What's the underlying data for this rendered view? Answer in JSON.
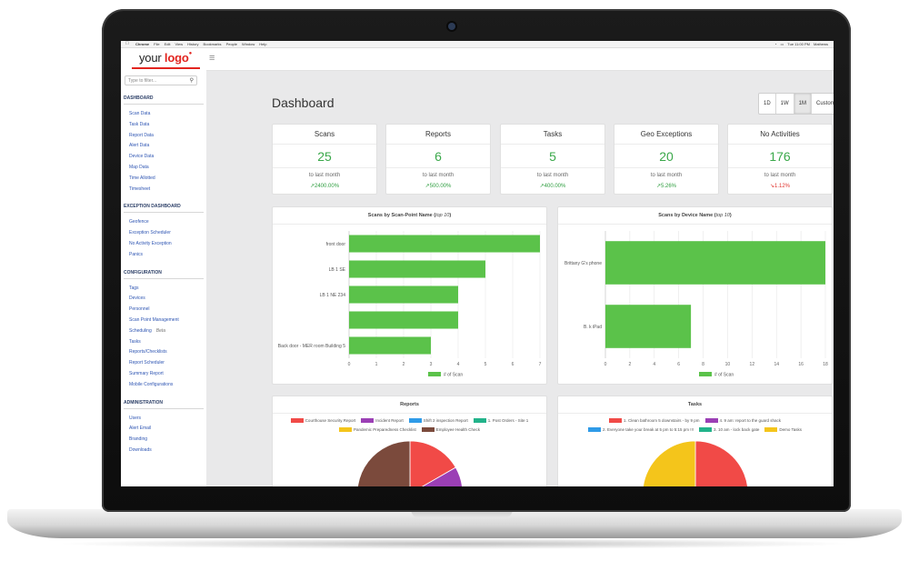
{
  "menubar": {
    "items": [
      "Chrome",
      "File",
      "Edit",
      "View",
      "History",
      "Bookmarks",
      "People",
      "Window",
      "Help"
    ],
    "clock": "Tue 11:00 PM",
    "user": "Mathews"
  },
  "header": {
    "logo_word": "your",
    "logo_brand": "logo"
  },
  "sidebar": {
    "filter_placeholder": "Type to filter...",
    "sections": [
      {
        "title": "DASHBOARD",
        "items": [
          "Scan Data",
          "Task Data",
          "Report Data",
          "Alert Data",
          "Device Data",
          "Map Data",
          "Time Allotted",
          "Timesheet"
        ]
      },
      {
        "title": "EXCEPTION DASHBOARD",
        "items": [
          "Geofence",
          "Exception Scheduler",
          "No Activity Exception",
          "Panics"
        ]
      },
      {
        "title": "CONFIGURATION",
        "items": [
          "Tags",
          "Devices",
          "Personnel",
          "Scan Point Management",
          "Scheduling",
          "Tasks",
          "Reports/Checklists",
          "Report Scheduler",
          "Summary Report",
          "Mobile Configurations"
        ]
      },
      {
        "title": "ADMINISTRATION",
        "items": [
          "Users",
          "Alert Email",
          "Branding",
          "Downloads"
        ]
      }
    ],
    "beta_label": "Beta"
  },
  "main": {
    "title": "Dashboard",
    "ranges": [
      "1D",
      "1W",
      "1M",
      "Custom"
    ],
    "active_range": "1M",
    "stats": [
      {
        "title": "Scans",
        "value": "25",
        "sub": "to last month",
        "delta": "2400.00%",
        "trend": "up"
      },
      {
        "title": "Reports",
        "value": "6",
        "sub": "to last month",
        "delta": "500.00%",
        "trend": "up"
      },
      {
        "title": "Tasks",
        "value": "5",
        "sub": "to last month",
        "delta": "400.00%",
        "trend": "up"
      },
      {
        "title": "Geo Exceptions",
        "value": "20",
        "sub": "to last month",
        "delta": "5.26%",
        "trend": "up"
      },
      {
        "title": "No Activities",
        "value": "176",
        "sub": "to last month",
        "delta": "1.12%",
        "trend": "down"
      }
    ]
  },
  "colors": {
    "accent": "#e2241f",
    "nav_link": "#2f56b3",
    "bar_green": "#5bc24a",
    "value_green": "#3aa84a",
    "down_red": "#e0332d"
  },
  "chart_data": [
    {
      "type": "bar",
      "orientation": "horizontal",
      "title": "Scans by Scan-Point Name",
      "title_note": "top 10",
      "categories": [
        "front door",
        "LB 1 SE",
        "LB 1 NE 234",
        "",
        "Back door - MER room Building 5"
      ],
      "values": [
        7,
        5,
        4,
        4,
        3
      ],
      "xlim": [
        0,
        7
      ],
      "xticks": [
        0,
        1,
        2,
        3,
        4,
        5,
        6,
        7
      ],
      "legend": "# of Scan",
      "color": "#5bc24a",
      "grid": true
    },
    {
      "type": "bar",
      "orientation": "horizontal",
      "title": "Scans by Device Name",
      "title_note": "top 10",
      "categories": [
        "Brittany G's phone",
        "B. k iPad"
      ],
      "values": [
        18,
        7
      ],
      "xlim": [
        0,
        18
      ],
      "xticks": [
        0,
        2,
        4,
        6,
        8,
        10,
        12,
        14,
        16,
        18
      ],
      "legend": "# of Scan",
      "color": "#5bc24a",
      "grid": true
    },
    {
      "type": "pie",
      "title": "Reports",
      "legend": [
        {
          "name": "Courthouse Security Report",
          "color": "#f14a47"
        },
        {
          "name": "Incident Report",
          "color": "#9b3fb5"
        },
        {
          "name": "Shift 2 inspection Report",
          "color": "#2f9be8"
        },
        {
          "name": "1. Post Orders - Site 1",
          "color": "#22b38a"
        },
        {
          "name": "Pandemic Preparedness Checklist",
          "color": "#f4c51b"
        },
        {
          "name": "Employee Health Check",
          "color": "#7b4a3c"
        }
      ],
      "values": [
        16.7,
        16.7,
        8.3,
        0,
        0,
        58.3
      ]
    },
    {
      "type": "pie",
      "title": "Tasks",
      "legend": [
        {
          "name": "1. Clean bathroom 5 downstairs - by 9 pm",
          "color": "#f14a47"
        },
        {
          "name": "4. 9 am: report to the guard shack",
          "color": "#9b3fb5"
        },
        {
          "name": "2. Everyone take your break at 5 pm to 5:15 pm !!!",
          "color": "#2f9be8"
        },
        {
          "name": "3. 10 am - lock back gate",
          "color": "#22b38a"
        },
        {
          "name": "Demo Tasks",
          "color": "#f4c51b"
        }
      ],
      "values": [
        50,
        0,
        0,
        15,
        35
      ]
    }
  ]
}
